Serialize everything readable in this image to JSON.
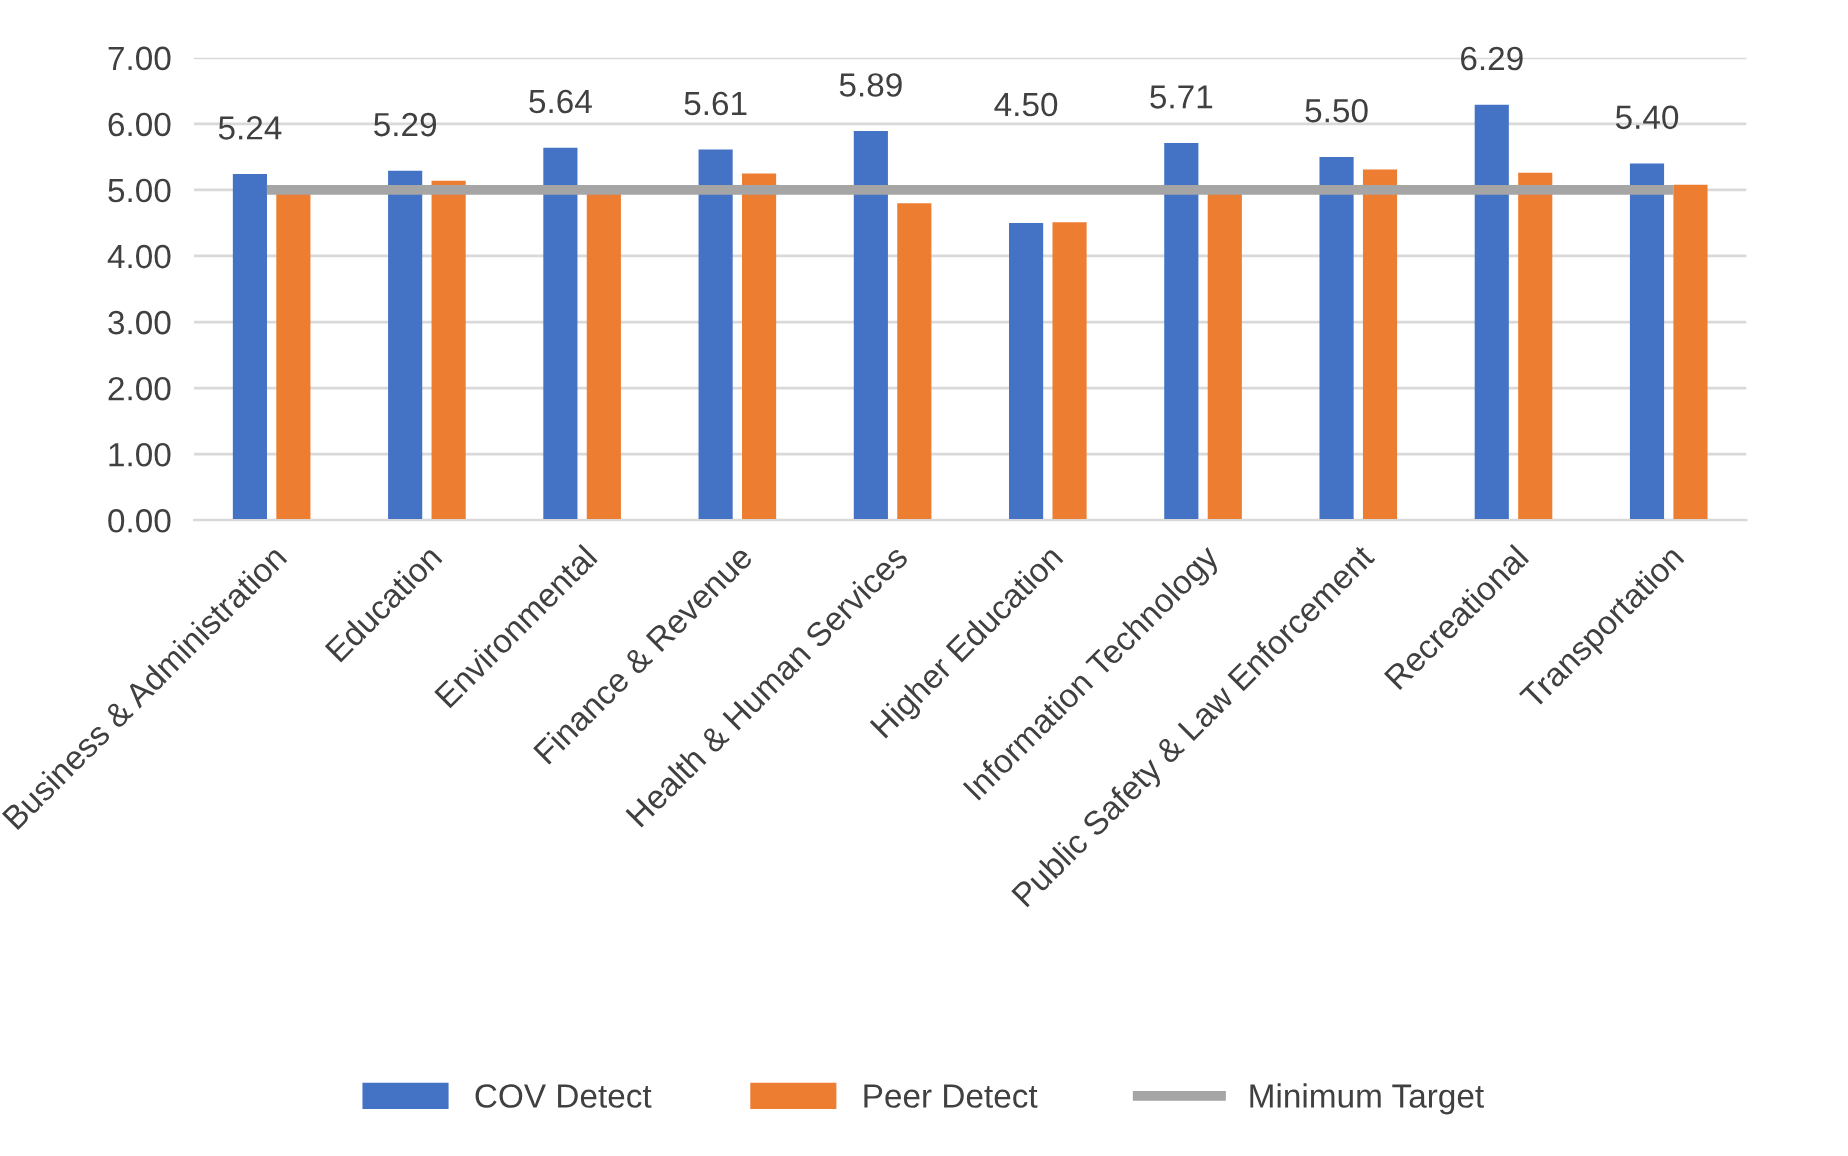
{
  "chart_data": {
    "type": "bar",
    "categories": [
      "Business & Administration",
      "Education",
      "Environmental",
      "Finance & Revenue",
      "Health & Human Services",
      "Higher Education",
      "Information Technology",
      "Public Safety & Law Enforcement",
      "Recreational",
      "Transportation"
    ],
    "series": [
      {
        "name": "COV Detect",
        "color": "#4472c4",
        "values": [
          5.24,
          5.29,
          5.64,
          5.61,
          5.89,
          4.5,
          5.71,
          5.5,
          6.29,
          5.4
        ],
        "value_labels": [
          "5.24",
          "5.29",
          "5.64",
          "5.61",
          "5.89",
          "4.50",
          "5.71",
          "5.50",
          "6.29",
          "5.40"
        ]
      },
      {
        "name": "Peer Detect",
        "color": "#ed7d31",
        "values": [
          4.96,
          5.14,
          4.95,
          5.25,
          4.8,
          4.51,
          4.94,
          5.31,
          5.26,
          5.08
        ]
      },
      {
        "name": "Minimum Target",
        "type": "line",
        "color": "#a5a5a5",
        "values": [
          5,
          5,
          5,
          5,
          5,
          5,
          5,
          5,
          5,
          5
        ]
      }
    ],
    "ylim": [
      0,
      7
    ],
    "yticks": [
      {
        "value": 0,
        "label": "0.00"
      },
      {
        "value": 1,
        "label": "1.00"
      },
      {
        "value": 2,
        "label": "2.00"
      },
      {
        "value": 3,
        "label": "3.00"
      },
      {
        "value": 4,
        "label": "4.00"
      },
      {
        "value": 5,
        "label": "5.00"
      },
      {
        "value": 6,
        "label": "6.00"
      },
      {
        "value": 7,
        "label": "7.00"
      }
    ],
    "grid": "y",
    "legend": "bottom"
  }
}
